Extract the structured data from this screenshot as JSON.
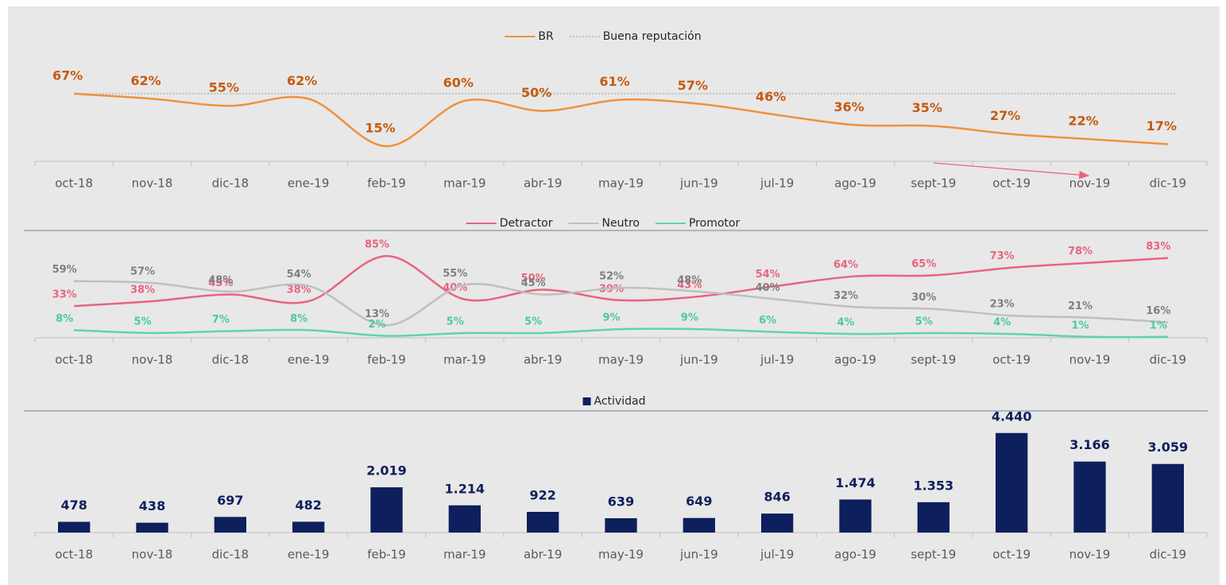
{
  "chart_data": [
    {
      "type": "line",
      "categories": [
        "oct-18",
        "nov-18",
        "dic-18",
        "ene-19",
        "feb-19",
        "mar-19",
        "abr-19",
        "may-19",
        "jun-19",
        "jul-19",
        "ago-19",
        "sept-19",
        "oct-19",
        "nov-19",
        "dic-19"
      ],
      "ylim": [
        0,
        100
      ],
      "series": [
        {
          "name": "BR",
          "color": "#f0913b",
          "label_color": "#c55a11",
          "values": [
            67,
            62,
            55,
            62,
            15,
            60,
            50,
            61,
            57,
            46,
            36,
            35,
            27,
            22,
            17
          ],
          "value_labels": [
            "67%",
            "62%",
            "55%",
            "62%",
            "15%",
            "60%",
            "50%",
            "61%",
            "57%",
            "46%",
            "36%",
            "35%",
            "27%",
            "22%",
            "17%"
          ]
        }
      ],
      "reference": {
        "name": "Buena reputación",
        "value": 67,
        "color": "#bfbfbf"
      }
    },
    {
      "type": "line",
      "categories": [
        "oct-18",
        "nov-18",
        "dic-18",
        "ene-19",
        "feb-19",
        "mar-19",
        "abr-19",
        "may-19",
        "jun-19",
        "jul-19",
        "ago-19",
        "sept-19",
        "oct-19",
        "nov-19",
        "dic-19"
      ],
      "ylim": [
        0,
        100
      ],
      "series": [
        {
          "name": "Detractor",
          "color": "#e8647f",
          "label_color": "#e8647f",
          "values": [
            33,
            38,
            45,
            38,
            85,
            40,
            50,
            39,
            43,
            54,
            64,
            65,
            73,
            78,
            83
          ],
          "value_labels": [
            "33%",
            "38%",
            "45%",
            "38%",
            "85%",
            "40%",
            "50%",
            "39%",
            "43%",
            "54%",
            "64%",
            "65%",
            "73%",
            "78%",
            "83%"
          ]
        },
        {
          "name": "Neutro",
          "color": "#bfbfbf",
          "label_color": "#7f7f7f",
          "values": [
            59,
            57,
            48,
            54,
            13,
            55,
            45,
            52,
            48,
            40,
            32,
            30,
            23,
            21,
            16
          ],
          "value_labels": [
            "59%",
            "57%",
            "48%",
            "54%",
            "13%",
            "55%",
            "45%",
            "52%",
            "48%",
            "40%",
            "32%",
            "30%",
            "23%",
            "21%",
            "16%"
          ]
        },
        {
          "name": "Promotor",
          "color": "#5fd3b0",
          "label_color": "#4cc9a3",
          "values": [
            8,
            5,
            7,
            8,
            2,
            5,
            5,
            9,
            9,
            6,
            4,
            5,
            4,
            1,
            1
          ],
          "value_labels": [
            "8%",
            "5%",
            "7%",
            "8%",
            "2%",
            "5%",
            "5%",
            "9%",
            "9%",
            "6%",
            "4%",
            "5%",
            "4%",
            "1%",
            "1%"
          ]
        }
      ]
    },
    {
      "type": "bar",
      "categories": [
        "oct-18",
        "nov-18",
        "dic-18",
        "ene-19",
        "feb-19",
        "mar-19",
        "abr-19",
        "may-19",
        "jun-19",
        "jul-19",
        "ago-19",
        "sept-19",
        "oct-19",
        "nov-19",
        "dic-19"
      ],
      "ylim": [
        0,
        5000
      ],
      "series": [
        {
          "name": "Actividad",
          "color": "#0d1f5c",
          "label_color": "#0d1f5c",
          "values": [
            478,
            438,
            697,
            482,
            2019,
            1214,
            922,
            639,
            649,
            846,
            1474,
            1353,
            4440,
            3166,
            3059
          ],
          "value_labels": [
            "478",
            "438",
            "697",
            "482",
            "2.019",
            "1.214",
            "922",
            "639",
            "649",
            "846",
            "1.474",
            "1.353",
            "4.440",
            "3.166",
            "3.059"
          ]
        }
      ]
    }
  ]
}
